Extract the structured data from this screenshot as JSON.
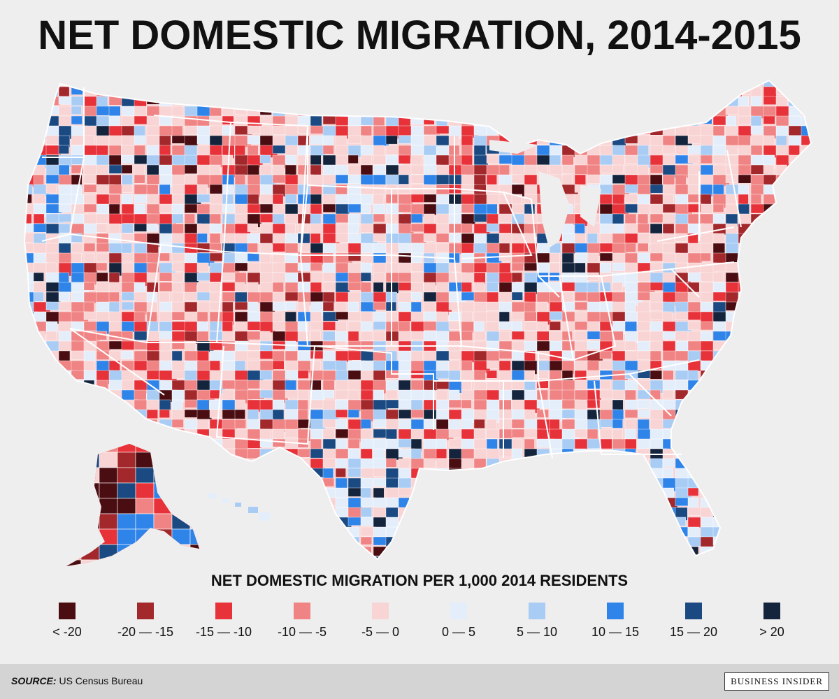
{
  "title": "NET DOMESTIC MIGRATION, 2014-2015",
  "legend_title": "NET DOMESTIC MIGRATION PER 1,000 2014 RESIDENTS",
  "legend": [
    {
      "label": "< -20",
      "color": "#4a0d12"
    },
    {
      "label": "-20 — -15",
      "color": "#a3282c"
    },
    {
      "label": "-15 — -10",
      "color": "#e8323a"
    },
    {
      "label": "-10 — -5",
      "color": "#f08484"
    },
    {
      "label": "-5 — 0",
      "color": "#f9d4d4"
    },
    {
      "label": "0 — 5",
      "color": "#e4eefb"
    },
    {
      "label": "5 — 10",
      "color": "#a9ccf5"
    },
    {
      "label": "10 — 15",
      "color": "#2f84ea"
    },
    {
      "label": "15 — 20",
      "color": "#1b4a82"
    },
    {
      "label": "> 20",
      "color": "#15243d"
    }
  ],
  "source_label": "SOURCE:",
  "source_text": "US Census Bureau",
  "brand": "BUSINESS INSIDER"
}
